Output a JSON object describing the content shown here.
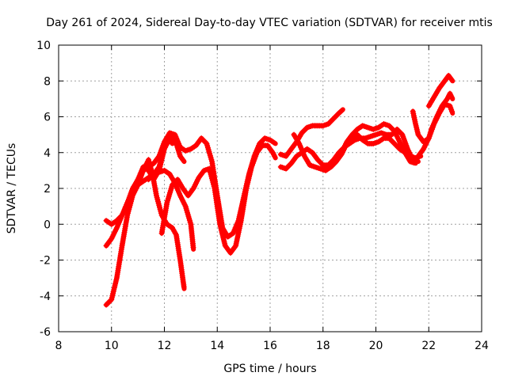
{
  "chart_data": {
    "type": "scatter",
    "title": "Day 261 of 2024, Sidereal Day-to-day VTEC variation (SDTVAR) for receiver mtis",
    "xlabel": "GPS time / hours",
    "ylabel": "SDTVAR / TECUs",
    "xlim": [
      8,
      24
    ],
    "ylim": [
      -6,
      10
    ],
    "xticks": [
      "8",
      "10",
      "12",
      "14",
      "16",
      "18",
      "20",
      "22",
      "24"
    ],
    "yticks": [
      "-6",
      "-4",
      "-2",
      "0",
      "2",
      "4",
      "6",
      "8",
      "10"
    ],
    "grid": true,
    "marker": "+",
    "color": "#ff0000",
    "series": [
      {
        "name": "trace-1",
        "points": [
          [
            9.8,
            -4.5
          ],
          [
            10.0,
            -4.2
          ],
          [
            10.2,
            -3.0
          ],
          [
            10.4,
            -1.2
          ],
          [
            10.6,
            0.5
          ],
          [
            10.8,
            1.6
          ],
          [
            11.0,
            2.2
          ],
          [
            11.2,
            3.0
          ],
          [
            11.4,
            3.6
          ],
          [
            11.55,
            2.8
          ],
          [
            11.7,
            1.6
          ],
          [
            11.9,
            0.5
          ],
          [
            12.1,
            0.0
          ],
          [
            12.3,
            -0.2
          ],
          [
            12.45,
            -0.6
          ],
          [
            12.6,
            -2.0
          ],
          [
            12.75,
            -3.6
          ]
        ]
      },
      {
        "name": "trace-2",
        "points": [
          [
            9.8,
            -1.2
          ],
          [
            10.0,
            -0.8
          ],
          [
            10.2,
            -0.2
          ],
          [
            10.4,
            0.5
          ],
          [
            10.6,
            1.2
          ],
          [
            10.8,
            1.8
          ],
          [
            11.0,
            2.2
          ],
          [
            11.2,
            2.4
          ],
          [
            11.4,
            2.6
          ],
          [
            11.6,
            2.8
          ],
          [
            11.8,
            2.9
          ],
          [
            12.0,
            3.0
          ],
          [
            12.2,
            2.8
          ],
          [
            12.4,
            2.3
          ],
          [
            12.6,
            1.6
          ],
          [
            12.8,
            1.0
          ],
          [
            13.0,
            0.0
          ],
          [
            13.1,
            -1.4
          ]
        ]
      },
      {
        "name": "trace-3",
        "points": [
          [
            11.9,
            -0.5
          ],
          [
            12.1,
            1.2
          ],
          [
            12.3,
            2.2
          ],
          [
            12.5,
            2.5
          ],
          [
            12.7,
            2.0
          ],
          [
            12.9,
            1.6
          ],
          [
            13.1,
            2.0
          ],
          [
            13.3,
            2.6
          ],
          [
            13.5,
            3.0
          ],
          [
            13.7,
            3.1
          ],
          [
            13.9,
            2.0
          ],
          [
            14.1,
            0.0
          ],
          [
            14.3,
            -1.2
          ],
          [
            14.5,
            -1.6
          ],
          [
            14.7,
            -1.2
          ],
          [
            14.9,
            0.2
          ],
          [
            15.1,
            2.0
          ],
          [
            15.3,
            3.2
          ],
          [
            15.5,
            4.0
          ],
          [
            15.7,
            4.4
          ],
          [
            15.9,
            4.4
          ],
          [
            16.1,
            4.0
          ],
          [
            16.2,
            3.7
          ]
        ]
      },
      {
        "name": "trace-4",
        "points": [
          [
            11.0,
            2.5
          ],
          [
            11.2,
            3.2
          ],
          [
            11.4,
            3.0
          ],
          [
            11.6,
            2.5
          ],
          [
            11.8,
            3.0
          ],
          [
            12.0,
            4.2
          ],
          [
            12.2,
            4.8
          ],
          [
            12.3,
            5.0
          ],
          [
            12.45,
            4.5
          ],
          [
            12.6,
            3.8
          ],
          [
            12.75,
            3.5
          ]
        ]
      },
      {
        "name": "trace-5",
        "points": [
          [
            9.8,
            0.2
          ],
          [
            10.0,
            0.0
          ],
          [
            10.2,
            0.2
          ],
          [
            10.4,
            0.5
          ],
          [
            10.6,
            1.2
          ],
          [
            10.8,
            2.0
          ],
          [
            11.0,
            2.5
          ],
          [
            11.2,
            3.0
          ],
          [
            11.4,
            3.2
          ],
          [
            11.6,
            3.4
          ],
          [
            11.8,
            3.8
          ],
          [
            12.0,
            4.6
          ],
          [
            12.2,
            5.1
          ],
          [
            12.4,
            5.0
          ],
          [
            12.6,
            4.3
          ],
          [
            12.8,
            4.1
          ],
          [
            13.0,
            4.2
          ],
          [
            13.2,
            4.4
          ],
          [
            13.4,
            4.8
          ],
          [
            13.6,
            4.5
          ],
          [
            13.8,
            3.5
          ],
          [
            14.0,
            1.6
          ],
          [
            14.2,
            -0.2
          ],
          [
            14.4,
            -0.7
          ],
          [
            14.6,
            -0.5
          ],
          [
            14.8,
            0.2
          ],
          [
            15.0,
            1.5
          ],
          [
            15.2,
            2.8
          ],
          [
            15.4,
            3.8
          ],
          [
            15.6,
            4.5
          ],
          [
            15.8,
            4.8
          ],
          [
            16.0,
            4.7
          ],
          [
            16.2,
            4.5
          ]
        ]
      },
      {
        "name": "trace-6",
        "points": [
          [
            11.4,
            2.5
          ],
          [
            11.6,
            2.8
          ],
          [
            11.8,
            3.2
          ],
          [
            12.0,
            4.3
          ],
          [
            12.2,
            4.7
          ],
          [
            12.3,
            4.5
          ]
        ]
      },
      {
        "name": "trace-7",
        "points": [
          [
            16.4,
            3.2
          ],
          [
            16.6,
            3.1
          ],
          [
            16.8,
            3.4
          ],
          [
            17.0,
            3.8
          ],
          [
            17.2,
            4.0
          ],
          [
            17.4,
            4.2
          ],
          [
            17.6,
            4.0
          ],
          [
            17.8,
            3.6
          ],
          [
            18.0,
            3.3
          ],
          [
            18.2,
            3.3
          ],
          [
            18.4,
            3.6
          ],
          [
            18.6,
            4.0
          ],
          [
            18.8,
            4.3
          ],
          [
            19.0,
            4.5
          ],
          [
            19.2,
            4.7
          ],
          [
            19.4,
            4.8
          ],
          [
            19.6,
            4.8
          ],
          [
            19.8,
            4.9
          ],
          [
            20.0,
            5.0
          ],
          [
            20.2,
            5.1
          ],
          [
            20.4,
            5.0
          ],
          [
            20.6,
            5.0
          ],
          [
            20.8,
            5.3
          ],
          [
            21.0,
            5.0
          ],
          [
            21.2,
            4.2
          ],
          [
            21.4,
            3.6
          ],
          [
            21.6,
            3.5
          ]
        ]
      },
      {
        "name": "trace-8",
        "points": [
          [
            16.4,
            3.9
          ],
          [
            16.6,
            3.8
          ],
          [
            16.8,
            4.2
          ],
          [
            17.0,
            4.6
          ],
          [
            17.2,
            5.1
          ],
          [
            17.4,
            5.4
          ],
          [
            17.6,
            5.5
          ],
          [
            17.8,
            5.5
          ],
          [
            18.0,
            5.5
          ],
          [
            18.2,
            5.6
          ],
          [
            18.4,
            5.9
          ],
          [
            18.6,
            6.2
          ],
          [
            18.75,
            6.4
          ]
        ]
      },
      {
        "name": "trace-9",
        "points": [
          [
            16.9,
            5.0
          ],
          [
            17.1,
            4.5
          ],
          [
            17.3,
            3.8
          ],
          [
            17.5,
            3.3
          ],
          [
            17.7,
            3.2
          ],
          [
            17.9,
            3.1
          ],
          [
            18.1,
            3.0
          ],
          [
            18.3,
            3.2
          ],
          [
            18.5,
            3.5
          ],
          [
            18.7,
            3.9
          ],
          [
            18.9,
            4.5
          ],
          [
            19.1,
            4.9
          ],
          [
            19.3,
            5.0
          ],
          [
            19.5,
            4.7
          ],
          [
            19.7,
            4.5
          ],
          [
            19.9,
            4.5
          ],
          [
            20.1,
            4.6
          ],
          [
            20.3,
            4.8
          ],
          [
            20.5,
            4.8
          ],
          [
            20.7,
            4.5
          ],
          [
            20.9,
            4.2
          ],
          [
            21.1,
            4.0
          ],
          [
            21.3,
            3.8
          ],
          [
            21.5,
            3.7
          ],
          [
            21.7,
            3.8
          ]
        ]
      },
      {
        "name": "trace-10",
        "points": [
          [
            18.1,
            3.2
          ],
          [
            18.3,
            3.4
          ],
          [
            18.5,
            3.6
          ],
          [
            18.7,
            4.0
          ],
          [
            18.9,
            4.6
          ],
          [
            19.1,
            5.0
          ],
          [
            19.3,
            5.3
          ],
          [
            19.5,
            5.5
          ],
          [
            19.7,
            5.4
          ],
          [
            19.9,
            5.3
          ],
          [
            20.1,
            5.4
          ],
          [
            20.3,
            5.6
          ],
          [
            20.5,
            5.5
          ],
          [
            20.7,
            5.2
          ],
          [
            20.9,
            4.6
          ],
          [
            21.1,
            4.0
          ],
          [
            21.3,
            3.5
          ],
          [
            21.5,
            3.4
          ]
        ]
      },
      {
        "name": "trace-11",
        "points": [
          [
            21.4,
            6.3
          ],
          [
            21.5,
            5.6
          ],
          [
            21.6,
            5.0
          ],
          [
            21.8,
            4.6
          ],
          [
            22.0,
            4.8
          ],
          [
            22.1,
            5.3
          ],
          [
            22.3,
            6.0
          ],
          [
            22.5,
            6.6
          ],
          [
            22.7,
            7.0
          ],
          [
            22.8,
            7.3
          ],
          [
            22.9,
            7.0
          ]
        ]
      },
      {
        "name": "trace-12",
        "points": [
          [
            22.0,
            6.6
          ],
          [
            22.2,
            7.1
          ],
          [
            22.4,
            7.6
          ],
          [
            22.6,
            8.0
          ],
          [
            22.75,
            8.3
          ],
          [
            22.9,
            8.0
          ]
        ]
      },
      {
        "name": "trace-13",
        "points": [
          [
            21.6,
            3.8
          ],
          [
            21.8,
            4.2
          ],
          [
            22.0,
            4.8
          ],
          [
            22.2,
            5.6
          ],
          [
            22.4,
            6.2
          ],
          [
            22.6,
            6.7
          ],
          [
            22.8,
            6.6
          ],
          [
            22.9,
            6.2
          ]
        ]
      }
    ]
  }
}
